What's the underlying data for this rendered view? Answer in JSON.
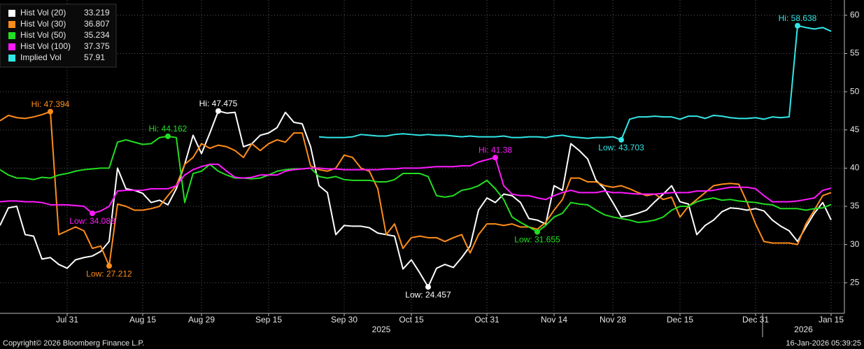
{
  "chart_data": {
    "type": "line",
    "categories": [
      null,
      null,
      null,
      null,
      null,
      null,
      null,
      null,
      "Jul 31",
      null,
      null,
      null,
      null,
      null,
      null,
      null,
      null,
      "Aug 15",
      null,
      null,
      null,
      null,
      null,
      null,
      "Aug 29",
      null,
      null,
      null,
      null,
      null,
      null,
      null,
      "Sep 15",
      null,
      null,
      null,
      null,
      null,
      null,
      null,
      null,
      "Sep 30",
      null,
      null,
      null,
      null,
      null,
      null,
      null,
      "Oct 15",
      null,
      null,
      null,
      null,
      null,
      null,
      null,
      null,
      "Oct 31",
      null,
      null,
      null,
      null,
      null,
      null,
      null,
      "Nov 14",
      null,
      null,
      null,
      null,
      null,
      null,
      "Nov 28",
      null,
      null,
      null,
      null,
      null,
      null,
      null,
      "Dec 15",
      null,
      null,
      null,
      null,
      null,
      null,
      null,
      null,
      "Dec 31",
      null,
      null,
      null,
      null,
      null,
      null,
      null,
      null,
      "Jan 15"
    ],
    "years": [
      "2025",
      "2026"
    ],
    "ylim": [
      21,
      62
    ],
    "yticks": [
      25,
      30,
      35,
      40,
      45,
      50,
      55,
      60
    ],
    "grid": true,
    "legend": "top-left",
    "series": [
      {
        "name": "Hist Vol (20)",
        "color": "#ffffff",
        "values": [
          32.5,
          34.8,
          35.0,
          31.3,
          31.1,
          28.1,
          28.3,
          27.4,
          26.9,
          28.0,
          28.3,
          28.5,
          29.1,
          30.4,
          40.0,
          37.3,
          37.1,
          36.7,
          35.5,
          35.8,
          35.2,
          37.3,
          40.5,
          44.3,
          41.9,
          44.6,
          47.475,
          47.2,
          47.3,
          42.8,
          43.2,
          44.3,
          44.6,
          45.3,
          47.3,
          46.0,
          45.8,
          42.8,
          37.7,
          36.8,
          31.3,
          32.5,
          32.4,
          32.4,
          32.2,
          31.5,
          31.3,
          31.1,
          26.8,
          28.0,
          26.3,
          24.457,
          26.9,
          27.4,
          27.0,
          28.3,
          29.8,
          34.5,
          36.1,
          35.5,
          36.6,
          36.4,
          35.5,
          33.4,
          33.2,
          32.7,
          37.7,
          37.1,
          43.2,
          42.3,
          41.2,
          38.4,
          37.3,
          35.5,
          33.6,
          33.8,
          34.1,
          34.5,
          35.6,
          36.6,
          37.7,
          35.6,
          35.3,
          31.3,
          32.5,
          33.2,
          34.3,
          34.8,
          34.7,
          34.5,
          34.7,
          34.4,
          33.2,
          32.4,
          31.8,
          30.4,
          32.3,
          34.1,
          35.5,
          33.219
        ],
        "value_labels": [
          null,
          null,
          null,
          null,
          null,
          null,
          null,
          null,
          null,
          null,
          null,
          null,
          null,
          null,
          null,
          null,
          null,
          null,
          null,
          null,
          null,
          null,
          null,
          null,
          null,
          null,
          "Hi: 47.475",
          null,
          null,
          null,
          null,
          null,
          null,
          null,
          null,
          null,
          null,
          null,
          null,
          null,
          null,
          null,
          null,
          null,
          null,
          null,
          null,
          null,
          null,
          null,
          null,
          "Low: 24.457",
          null,
          null,
          null,
          null,
          null,
          null,
          null,
          null,
          null,
          null,
          null,
          null,
          null,
          null,
          null,
          null,
          null,
          null,
          null,
          null,
          null,
          null,
          null,
          null,
          null,
          null,
          null,
          null,
          null,
          null,
          null,
          null,
          null,
          null,
          null,
          null,
          null,
          null,
          null,
          null,
          null,
          null,
          null,
          null,
          null,
          null,
          null,
          null
        ]
      },
      {
        "name": "Hist Vol (30)",
        "color": "#ff8c1a",
        "values": [
          46.2,
          46.9,
          46.6,
          46.5,
          46.7,
          47.0,
          47.394,
          31.3,
          31.8,
          32.3,
          31.8,
          29.5,
          29.8,
          27.212,
          35.3,
          35.0,
          34.5,
          34.5,
          34.7,
          35.0,
          36.4,
          37.7,
          40.5,
          41.4,
          43.2,
          42.6,
          43.0,
          42.8,
          42.3,
          41.4,
          43.2,
          42.3,
          43.2,
          43.7,
          43.4,
          44.6,
          44.6,
          40.3,
          39.8,
          39.6,
          40.0,
          41.7,
          41.4,
          40.0,
          39.6,
          37.3,
          31.3,
          32.7,
          29.5,
          30.9,
          31.1,
          30.9,
          30.9,
          30.4,
          30.9,
          31.3,
          28.9,
          31.3,
          32.7,
          32.7,
          32.5,
          32.7,
          32.3,
          32.3,
          32.0,
          32.9,
          34.5,
          35.9,
          38.7,
          38.7,
          38.2,
          38.2,
          37.7,
          37.5,
          37.7,
          37.3,
          36.8,
          36.4,
          36.6,
          35.9,
          36.2,
          33.6,
          35.0,
          35.9,
          36.8,
          37.7,
          37.9,
          38.0,
          37.9,
          35.5,
          32.7,
          30.4,
          30.2,
          30.2,
          30.2,
          30.0,
          32.7,
          34.5,
          36.4,
          36.807
        ],
        "value_labels": [
          null,
          null,
          null,
          null,
          null,
          null,
          "Hi: 47.394",
          null,
          null,
          null,
          null,
          null,
          null,
          "Low: 27.212",
          null,
          null,
          null,
          null,
          null,
          null,
          null,
          null,
          null,
          null,
          null,
          null,
          null,
          null,
          null,
          null,
          null,
          null,
          null,
          null,
          null,
          null,
          null,
          null,
          null,
          null,
          null,
          null,
          null,
          null,
          null,
          null,
          null,
          null,
          null,
          null,
          null,
          null,
          null,
          null,
          null,
          null,
          null,
          null,
          null,
          null,
          null,
          null,
          null,
          null,
          null,
          null,
          null,
          null,
          null,
          null,
          null,
          null,
          null,
          null,
          null,
          null,
          null,
          null,
          null,
          null,
          null,
          null,
          null,
          null,
          null,
          null,
          null,
          null,
          null,
          null,
          null,
          null,
          null,
          null,
          null,
          null,
          null,
          null,
          null,
          null
        ]
      },
      {
        "name": "Hist Vol (50)",
        "color": "#22dd22",
        "values": [
          39.8,
          39.1,
          38.7,
          38.7,
          38.5,
          38.8,
          38.7,
          39.1,
          39.3,
          39.6,
          39.8,
          39.9,
          40.0,
          40.0,
          43.4,
          43.7,
          43.4,
          43.1,
          43.2,
          44.0,
          44.162,
          44.0,
          35.5,
          39.3,
          39.6,
          40.5,
          39.6,
          39.1,
          38.7,
          38.7,
          38.6,
          38.7,
          39.1,
          39.6,
          39.8,
          39.9,
          39.9,
          40.0,
          38.9,
          38.7,
          38.9,
          38.5,
          38.4,
          38.4,
          38.4,
          38.2,
          38.2,
          38.5,
          39.3,
          39.3,
          39.3,
          38.9,
          36.4,
          36.2,
          36.4,
          37.1,
          37.3,
          37.7,
          38.4,
          37.3,
          35.9,
          33.6,
          32.9,
          32.3,
          31.655,
          32.5,
          33.6,
          34.1,
          35.5,
          35.3,
          35.2,
          34.5,
          33.9,
          33.6,
          33.4,
          33.2,
          32.9,
          33.0,
          33.2,
          33.6,
          34.5,
          35.0,
          35.0,
          35.6,
          35.9,
          36.1,
          35.8,
          35.9,
          35.7,
          35.6,
          35.5,
          35.3,
          35.2,
          34.7,
          34.7,
          34.7,
          34.5,
          34.7,
          34.8,
          35.234
        ],
        "value_labels": [
          null,
          null,
          null,
          null,
          null,
          null,
          null,
          null,
          null,
          null,
          null,
          null,
          null,
          null,
          null,
          null,
          null,
          null,
          null,
          null,
          "Hi: 44.162",
          null,
          null,
          null,
          null,
          null,
          null,
          null,
          null,
          null,
          null,
          null,
          null,
          null,
          null,
          null,
          null,
          null,
          null,
          null,
          null,
          null,
          null,
          null,
          null,
          null,
          null,
          null,
          null,
          null,
          null,
          null,
          null,
          null,
          null,
          null,
          null,
          null,
          null,
          null,
          null,
          null,
          null,
          null,
          "Low: 31.655",
          null,
          null,
          null,
          null,
          null,
          null,
          null,
          null,
          null,
          null,
          null,
          null,
          null,
          null,
          null,
          null,
          null,
          null,
          null,
          null,
          null,
          null,
          null,
          null,
          null,
          null,
          null,
          null,
          null,
          null,
          null,
          null,
          null,
          null,
          null
        ]
      },
      {
        "name": "Hist Vol (100)",
        "color": "#ff1aff",
        "values": [
          35.6,
          35.7,
          35.7,
          35.6,
          35.6,
          35.5,
          35.2,
          35.2,
          35.2,
          35.1,
          35.0,
          34.088,
          34.4,
          35.0,
          37.0,
          37.1,
          37.1,
          37.1,
          37.3,
          37.3,
          37.3,
          37.7,
          39.1,
          39.8,
          40.2,
          40.5,
          40.5,
          39.6,
          38.8,
          38.7,
          38.8,
          39.1,
          39.1,
          39.1,
          39.6,
          39.8,
          39.9,
          40.0,
          40.0,
          39.9,
          39.9,
          39.8,
          39.8,
          39.8,
          39.8,
          39.8,
          39.9,
          39.9,
          40.0,
          40.0,
          40.0,
          40.1,
          40.2,
          40.2,
          40.2,
          40.3,
          40.3,
          40.8,
          41.1,
          41.38,
          37.7,
          36.6,
          36.4,
          36.4,
          36.1,
          35.9,
          36.4,
          36.8,
          37.1,
          36.8,
          36.8,
          36.8,
          37.0,
          36.8,
          36.8,
          36.7,
          36.6,
          36.6,
          36.6,
          36.7,
          36.8,
          36.8,
          36.8,
          37.0,
          37.0,
          37.1,
          37.3,
          37.5,
          37.5,
          37.5,
          37.3,
          36.4,
          35.6,
          35.6,
          35.6,
          35.7,
          35.9,
          36.1,
          37.1,
          37.375
        ],
        "value_labels": [
          null,
          null,
          null,
          null,
          null,
          null,
          null,
          null,
          null,
          null,
          null,
          "Low: 34.088",
          null,
          null,
          null,
          null,
          null,
          null,
          null,
          null,
          null,
          null,
          null,
          null,
          null,
          null,
          null,
          null,
          null,
          null,
          null,
          null,
          null,
          null,
          null,
          null,
          null,
          null,
          null,
          null,
          null,
          null,
          null,
          null,
          null,
          null,
          null,
          null,
          null,
          null,
          null,
          null,
          null,
          null,
          null,
          null,
          null,
          null,
          null,
          "Hi: 41.38",
          null,
          null,
          null,
          null,
          null,
          null,
          null,
          null,
          null,
          null,
          null,
          null,
          null,
          null,
          null,
          null,
          null,
          null,
          null,
          null,
          null,
          null,
          null,
          null,
          null,
          null,
          null,
          null,
          null,
          null,
          null,
          null,
          null,
          null,
          null,
          null,
          null,
          null,
          null,
          null
        ]
      },
      {
        "name": "Implied Vol",
        "color": "#33e6e6",
        "values": [
          null,
          null,
          null,
          null,
          null,
          null,
          null,
          null,
          null,
          null,
          null,
          null,
          null,
          null,
          null,
          null,
          null,
          null,
          null,
          null,
          null,
          null,
          null,
          null,
          null,
          null,
          null,
          null,
          null,
          null,
          null,
          null,
          null,
          null,
          null,
          null,
          null,
          null,
          44.1,
          44.0,
          44.0,
          44.0,
          44.1,
          44.4,
          44.3,
          44.2,
          44.2,
          44.4,
          44.5,
          44.4,
          44.3,
          44.4,
          44.3,
          44.3,
          44.2,
          44.1,
          44.2,
          44.1,
          44.1,
          44.1,
          44.2,
          44.0,
          44.0,
          44.1,
          44.1,
          44.0,
          44.2,
          44.3,
          44.1,
          44.0,
          43.9,
          44.0,
          44.0,
          44.1,
          43.703,
          46.4,
          46.7,
          46.7,
          46.8,
          46.7,
          46.7,
          46.4,
          46.8,
          46.8,
          46.5,
          46.9,
          46.8,
          46.6,
          46.5,
          46.5,
          46.6,
          46.4,
          46.7,
          46.6,
          46.7,
          58.638,
          58.4,
          58.2,
          58.4,
          57.91
        ],
        "value_labels": [
          null,
          null,
          null,
          null,
          null,
          null,
          null,
          null,
          null,
          null,
          null,
          null,
          null,
          null,
          null,
          null,
          null,
          null,
          null,
          null,
          null,
          null,
          null,
          null,
          null,
          null,
          null,
          null,
          null,
          null,
          null,
          null,
          null,
          null,
          null,
          null,
          null,
          null,
          null,
          null,
          null,
          null,
          null,
          null,
          null,
          null,
          null,
          null,
          null,
          null,
          null,
          null,
          null,
          null,
          null,
          null,
          null,
          null,
          null,
          null,
          null,
          null,
          null,
          null,
          null,
          null,
          null,
          null,
          null,
          null,
          null,
          null,
          null,
          null,
          "Low: 43.703",
          null,
          null,
          null,
          null,
          null,
          null,
          null,
          null,
          null,
          null,
          null,
          null,
          null,
          null,
          null,
          null,
          null,
          null,
          null,
          null,
          "Hi: 58.638",
          null,
          null,
          null,
          null
        ]
      }
    ]
  },
  "footer": {
    "copyright": "Copyright© 2026 Bloomberg Finance L.P.",
    "timestamp": "16-Jan-2026 05:39:25"
  }
}
